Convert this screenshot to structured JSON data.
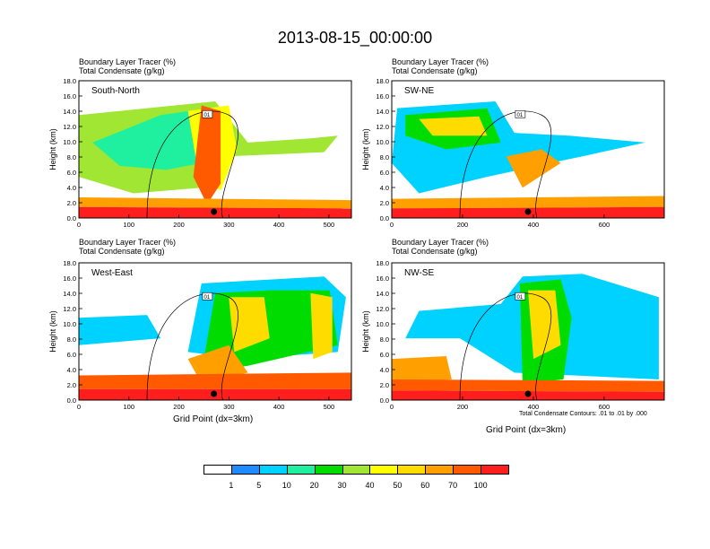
{
  "title": "2013-08-15_00:00:00",
  "panel_line1": "Boundary Layer Tracer   (%)",
  "panel_line2": "Total Condensate   (g/kg)",
  "xlabel": "Grid Point (dx=3km)",
  "ylabel": "Height (km)",
  "contour_note": "Total Condensate Contours: .01 to .01 by .000",
  "contour_label": "01",
  "colorbar": {
    "colors": [
      "#ffffff",
      "#1e8cff",
      "#00d2ff",
      "#1ef0a0",
      "#00dc00",
      "#a0e632",
      "#ffff00",
      "#ffdc00",
      "#ffa000",
      "#ff5a00",
      "#ff1e1e"
    ],
    "labels": [
      "1",
      "5",
      "10",
      "20",
      "30",
      "40",
      "50",
      "60",
      "70",
      "100"
    ]
  },
  "chart_data": [
    {
      "type": "heatmap",
      "name": "South-North",
      "ylabel": "Height (km)",
      "xlim": [
        0,
        545
      ],
      "ylim": [
        0,
        18
      ],
      "xticks": [
        "0",
        "100",
        "200",
        "300",
        "400",
        "500"
      ],
      "yticks": [
        "0.0",
        "2.0",
        "4.0",
        "6.0",
        "8.0",
        "10.0",
        "12.0",
        "14.0",
        "16.0",
        "18.0"
      ],
      "marker_x": 270
    },
    {
      "type": "heatmap",
      "name": "SW-NE",
      "ylabel": "Height (km)",
      "xlim": [
        0,
        770
      ],
      "ylim": [
        0,
        18
      ],
      "xticks": [
        "0",
        "200",
        "400",
        "600"
      ],
      "yticks": [
        "0.0",
        "2.0",
        "4.0",
        "6.0",
        "8.0",
        "10.0",
        "12.0",
        "14.0",
        "16.0",
        "18.0"
      ],
      "marker_x": 385
    },
    {
      "type": "heatmap",
      "name": "West-East",
      "ylabel": "Height (km)",
      "xlabel": "Grid Point (dx=3km)",
      "xlim": [
        0,
        545
      ],
      "ylim": [
        0,
        18
      ],
      "xticks": [
        "0",
        "100",
        "200",
        "300",
        "400",
        "500"
      ],
      "yticks": [
        "0.0",
        "2.0",
        "4.0",
        "6.0",
        "8.0",
        "10.0",
        "12.0",
        "14.0",
        "16.0",
        "18.0"
      ],
      "marker_x": 270
    },
    {
      "type": "heatmap",
      "name": "NW-SE",
      "ylabel": "Height (km)",
      "xlabel": "Grid Point (dx=3km)",
      "xlim": [
        0,
        770
      ],
      "ylim": [
        0,
        18
      ],
      "xticks": [
        "0",
        "200",
        "400",
        "600"
      ],
      "yticks": [
        "0.0",
        "2.0",
        "4.0",
        "6.0",
        "8.0",
        "10.0",
        "12.0",
        "14.0",
        "16.0",
        "18.0"
      ],
      "marker_x": 385
    }
  ]
}
